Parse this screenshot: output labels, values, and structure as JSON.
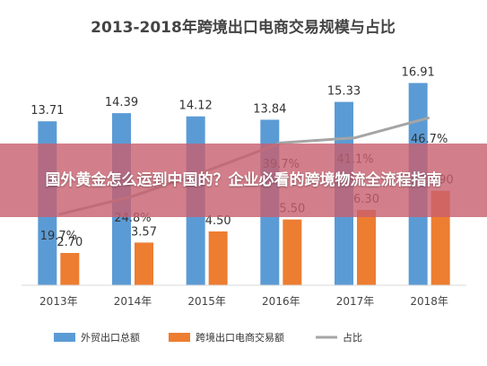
{
  "chart_data": {
    "type": "bar",
    "title": "2013-2018年跨境出口电商交易规模与占比",
    "categories": [
      "2013年",
      "2014年",
      "2015年",
      "2016年",
      "2017年",
      "2018年"
    ],
    "series": [
      {
        "name": "外贸出口总额",
        "values": [
          13.71,
          14.39,
          14.12,
          13.84,
          15.33,
          16.91
        ],
        "labels": [
          "13.71",
          "14.39",
          "14.12",
          "13.84",
          "15.33",
          "16.91"
        ],
        "color": "#5b9bd5"
      },
      {
        "name": "跨境出口电商交易额",
        "values": [
          2.7,
          3.57,
          4.5,
          5.5,
          6.3,
          7.9
        ],
        "labels": [
          "2.70",
          "3.57",
          "4.50",
          "5.50",
          "6.30",
          "7.90"
        ],
        "color": "#ed7d31"
      }
    ],
    "line_series": {
      "name": "占比",
      "values": [
        19.7,
        24.8,
        31.9,
        39.7,
        41.1,
        46.7
      ],
      "labels": [
        "19.7%",
        "24.8%",
        "",
        "39.7%",
        "41.1%",
        "46.7%"
      ],
      "color": "#a5a5a5"
    },
    "ylim": [
      0,
      18
    ],
    "line_ylim": [
      0,
      60
    ],
    "legend": "bottom",
    "grid": false
  },
  "overlay": {
    "text": "国外黄金怎么运到中国的？企业必看的跨境物流全流程指南"
  }
}
